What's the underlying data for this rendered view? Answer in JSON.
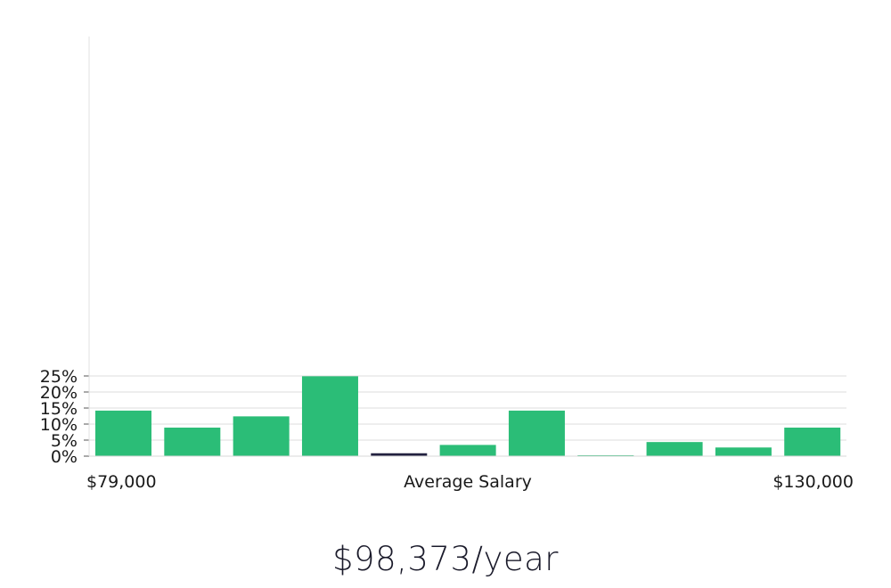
{
  "chart_data": {
    "type": "bar",
    "xlabel": "Average Salary",
    "x_min_label": "$79,000",
    "x_max_label": "$130,000",
    "ylim": [
      0,
      26
    ],
    "y_ticks": [
      0,
      5,
      10,
      15,
      20,
      25
    ],
    "y_tick_labels": [
      "0%",
      "5%",
      "10%",
      "15%",
      "20%",
      "25%"
    ],
    "grid": true,
    "values": [
      14.2,
      8.9,
      12.4,
      24.9,
      0.9,
      3.5,
      14.2,
      0.1,
      4.4,
      2.7,
      8.9
    ],
    "highlight_index": 4,
    "bar_color": "#2bbd77",
    "highlight_color": "#22213f"
  },
  "summary": {
    "salary_text": "$98,373/year"
  }
}
